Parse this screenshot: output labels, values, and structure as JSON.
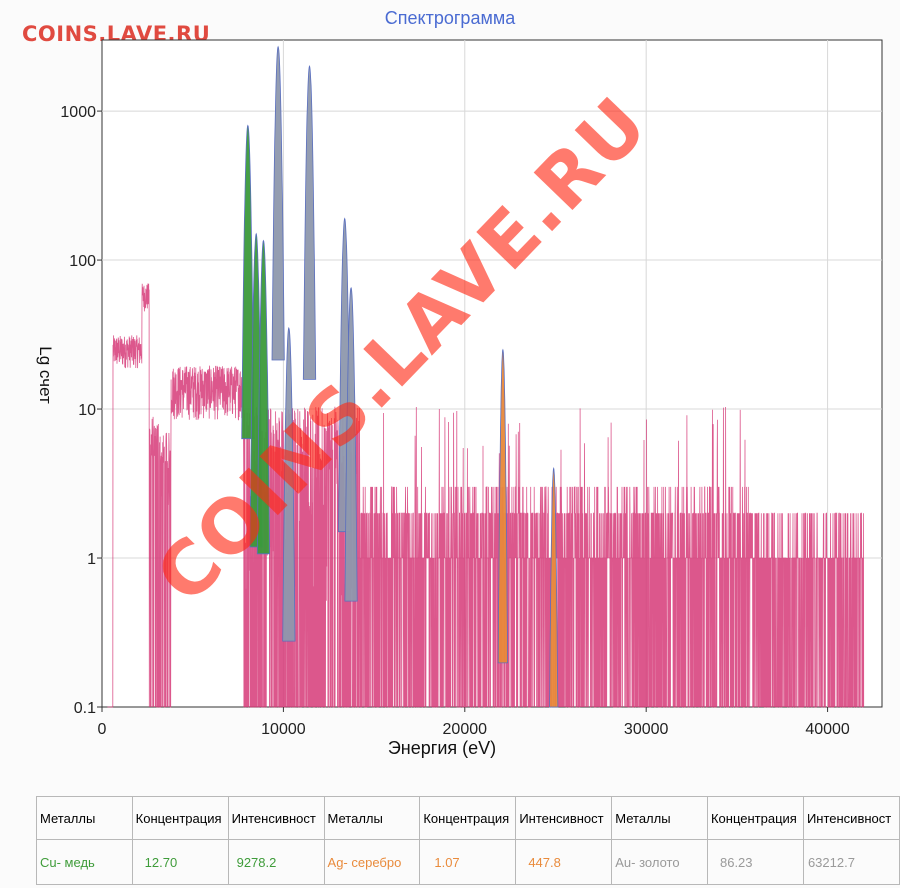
{
  "watermark": "COINS.LAVE.RU",
  "stamp": "COINS.LAVE.RU",
  "chart_data": {
    "type": "line",
    "title": "Спектрограмма",
    "xlabel": "Энергия (eV)",
    "ylabel": "Lg счет",
    "x_ticks": [
      "0",
      "10000",
      "20000",
      "30000",
      "40000"
    ],
    "y_ticks": [
      "0.1",
      "1",
      "10",
      "100",
      "1000"
    ],
    "xlim": [
      0,
      43000
    ],
    "ylim": [
      0.1,
      3000
    ],
    "y_scale": "log",
    "grid": true,
    "series_colors": {
      "noise": "#d63a78",
      "cu": "#3b9a3b",
      "ag": "#e8883a",
      "au": "#8e98ad"
    },
    "peaks": [
      {
        "metal": "Cu",
        "energy": 8040,
        "counts": 800
      },
      {
        "metal": "Cu",
        "energy": 8500,
        "counts": 150
      },
      {
        "metal": "Cu",
        "energy": 8900,
        "counts": 135
      },
      {
        "metal": "Au",
        "energy": 9710,
        "counts": 2700
      },
      {
        "metal": "Au",
        "energy": 10300,
        "counts": 35
      },
      {
        "metal": "Au",
        "energy": 11440,
        "counts": 2000
      },
      {
        "metal": "Au",
        "energy": 13380,
        "counts": 190
      },
      {
        "metal": "Au",
        "energy": 13730,
        "counts": 65
      },
      {
        "metal": "Ag",
        "energy": 22100,
        "counts": 25
      },
      {
        "metal": "Ag",
        "energy": 24900,
        "counts": 4
      }
    ]
  },
  "table": {
    "headers": [
      "Металлы",
      "Концентрация",
      "Интенсивност",
      "Металлы",
      "Концентрация",
      "Интенсивност",
      "Металлы",
      "Концентрация",
      "Интенсивност"
    ],
    "values": [
      "Cu- медь",
      "12.70",
      "9278.2",
      "Ag- серебро",
      "1.07",
      "447.8",
      "Au- золото",
      "86.23",
      "63212.7"
    ]
  }
}
